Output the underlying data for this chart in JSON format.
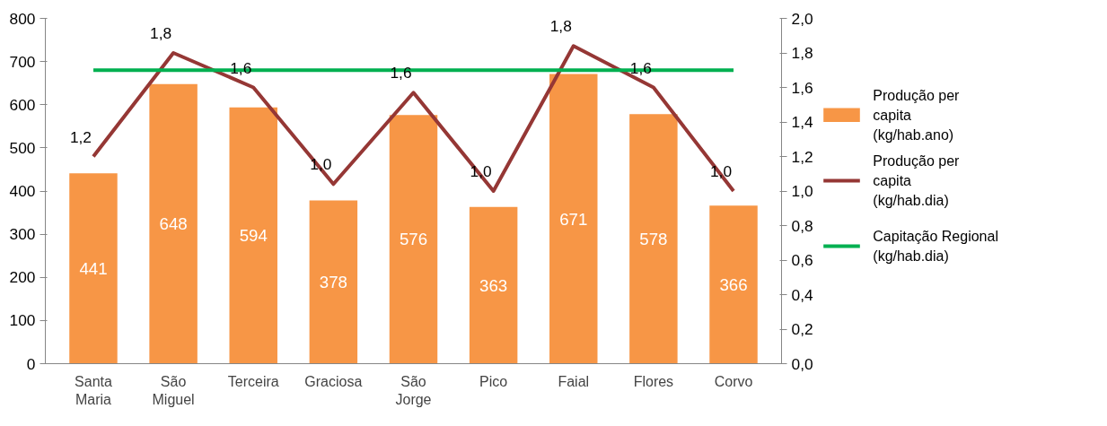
{
  "chart_data": {
    "type": "bar",
    "categories": [
      "Santa Maria",
      "São Miguel",
      "Terceira",
      "Graciosa",
      "São Jorge",
      "Pico",
      "Faial",
      "Flores",
      "Corvo"
    ],
    "series": [
      {
        "name": "Produção per capita (kg/hab.ano)",
        "type": "bar",
        "color": "#f79646",
        "values": [
          441,
          648,
          594,
          378,
          576,
          363,
          671,
          578,
          366
        ],
        "data_labels": true
      },
      {
        "name": "Produção per capita (kg/hab.dia)",
        "type": "line",
        "axis": "y2",
        "color": "#953735",
        "values": [
          1.2,
          1.8,
          1.6,
          1.04,
          1.57,
          1.0,
          1.84,
          1.6,
          1.0
        ],
        "value_labels": [
          "1,2",
          "1,8",
          "1,6",
          "1,0",
          "1,6",
          "1,0",
          "1,8",
          "1,6",
          "1,0"
        ]
      },
      {
        "name": "Capitação Regional (kg/hab.dia)",
        "type": "line",
        "axis": "y2",
        "color": "#00b050",
        "values": [
          1.7,
          1.7,
          1.7,
          1.7,
          1.7,
          1.7,
          1.7,
          1.7,
          1.7
        ]
      }
    ],
    "ylim": [
      0,
      800
    ],
    "yticks": [
      0,
      100,
      200,
      300,
      400,
      500,
      600,
      700,
      800
    ],
    "y2lim": [
      0,
      2.0
    ],
    "y2ticks": [
      {
        "value": 0,
        "label": "0,0"
      },
      {
        "value": 0.2,
        "label": "0,2"
      },
      {
        "value": 0.4,
        "label": "0,4"
      },
      {
        "value": 0.6,
        "label": "0,6"
      },
      {
        "value": 0.8,
        "label": "0,8"
      },
      {
        "value": 1.0,
        "label": "1,0"
      },
      {
        "value": 1.2,
        "label": "1,2"
      },
      {
        "value": 1.4,
        "label": "1,4"
      },
      {
        "value": 1.6,
        "label": "1,6"
      },
      {
        "value": 1.8,
        "label": "1,8"
      },
      {
        "value": 2.0,
        "label": "2,0"
      }
    ],
    "grid": false,
    "legend": "right",
    "marker": "none",
    "line_style": "solid"
  }
}
